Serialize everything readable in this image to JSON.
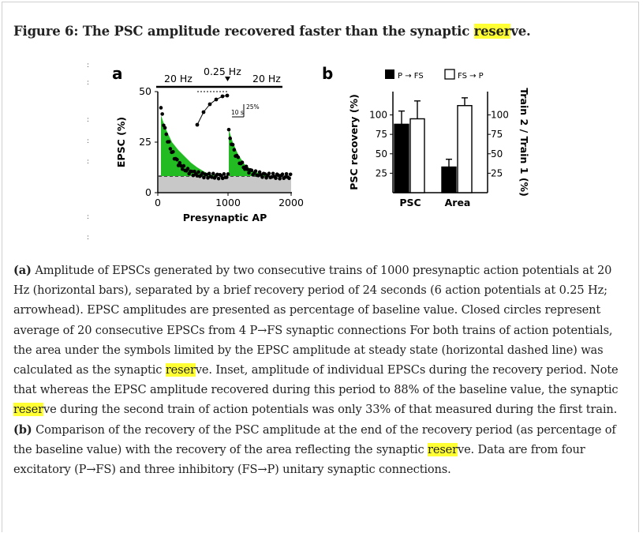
{
  "title": {
    "pre": "Figure 6: The PSC amplitude recovered faster than the synaptic ",
    "hl": "reser",
    "post": "ve."
  },
  "panel_a": {
    "letter": "a",
    "ylabel": "EPSC (%)",
    "xlabel": "Presynaptic AP",
    "yticks": [
      "0",
      "25",
      "50"
    ],
    "xticks": [
      "0",
      "1000",
      "2000"
    ],
    "bar_left": "20 Hz",
    "bar_mid": "0.25 Hz",
    "bar_right": "20 Hz",
    "scale_pct": "25%",
    "scale_time": "10 s"
  },
  "panel_b": {
    "letter": "b",
    "legend_filled": "P → FS",
    "legend_open": "FS → P",
    "ylabel_left": "PSC recovery (%)",
    "ylabel_right": "Train 2 / Train 1 (%)",
    "left_ticks": [
      "25",
      "50",
      "75",
      "100"
    ],
    "right_ticks": [
      "25",
      "50",
      "75",
      "100"
    ],
    "categories": [
      "PSC",
      "Area"
    ]
  },
  "chart_data": {
    "type": "bar",
    "categories": [
      "PSC",
      "Area"
    ],
    "series": [
      {
        "name": "P → FS",
        "values": [
          88,
          33
        ],
        "errors": [
          17,
          10
        ]
      },
      {
        "name": "FS → P",
        "values": [
          95,
          112
        ],
        "errors": [
          23,
          10
        ]
      }
    ],
    "ylim": [
      0,
      130
    ]
  },
  "caption": [
    {
      "t": "(a)",
      "b": true
    },
    {
      "t": " Amplitude of EPSCs generated by two consecutive trains of 1000 presynaptic action potentials at 20 Hz (horizontal bars), separated by a brief recovery period of 24 seconds (6 action potentials at 0.25 Hz; arrowhead). EPSC amplitudes are presented as percentage of baseline value. Closed circles represent average of 20 consecutive EPSCs from 4 P→FS synaptic connections For both trains of action potentials, the area under the symbols limited by the EPSC amplitude at steady state (horizontal dashed line) was calculated as the synaptic "
    },
    {
      "t": "reser",
      "hl": true
    },
    {
      "t": "ve. Inset, amplitude of individual EPSCs during the recovery period. Note that whereas the EPSC amplitude recovered during this period to 88% of the baseline value, the synaptic "
    },
    {
      "t": "reser",
      "hl": true
    },
    {
      "t": "ve during the second train of action potentials was only 33% of that measured during the first train. "
    },
    {
      "t": "(b)",
      "b": true
    },
    {
      "t": " Comparison of the recovery of the PSC amplitude at the end of the recovery period (as percentage of the baseline value) with the recovery of the area reflecting the synaptic "
    },
    {
      "t": "reser",
      "hl": true
    },
    {
      "t": "ve. Data are from four excitatory (P→FS) and three inhibitory (FS→P) unitary synaptic connections."
    }
  ]
}
